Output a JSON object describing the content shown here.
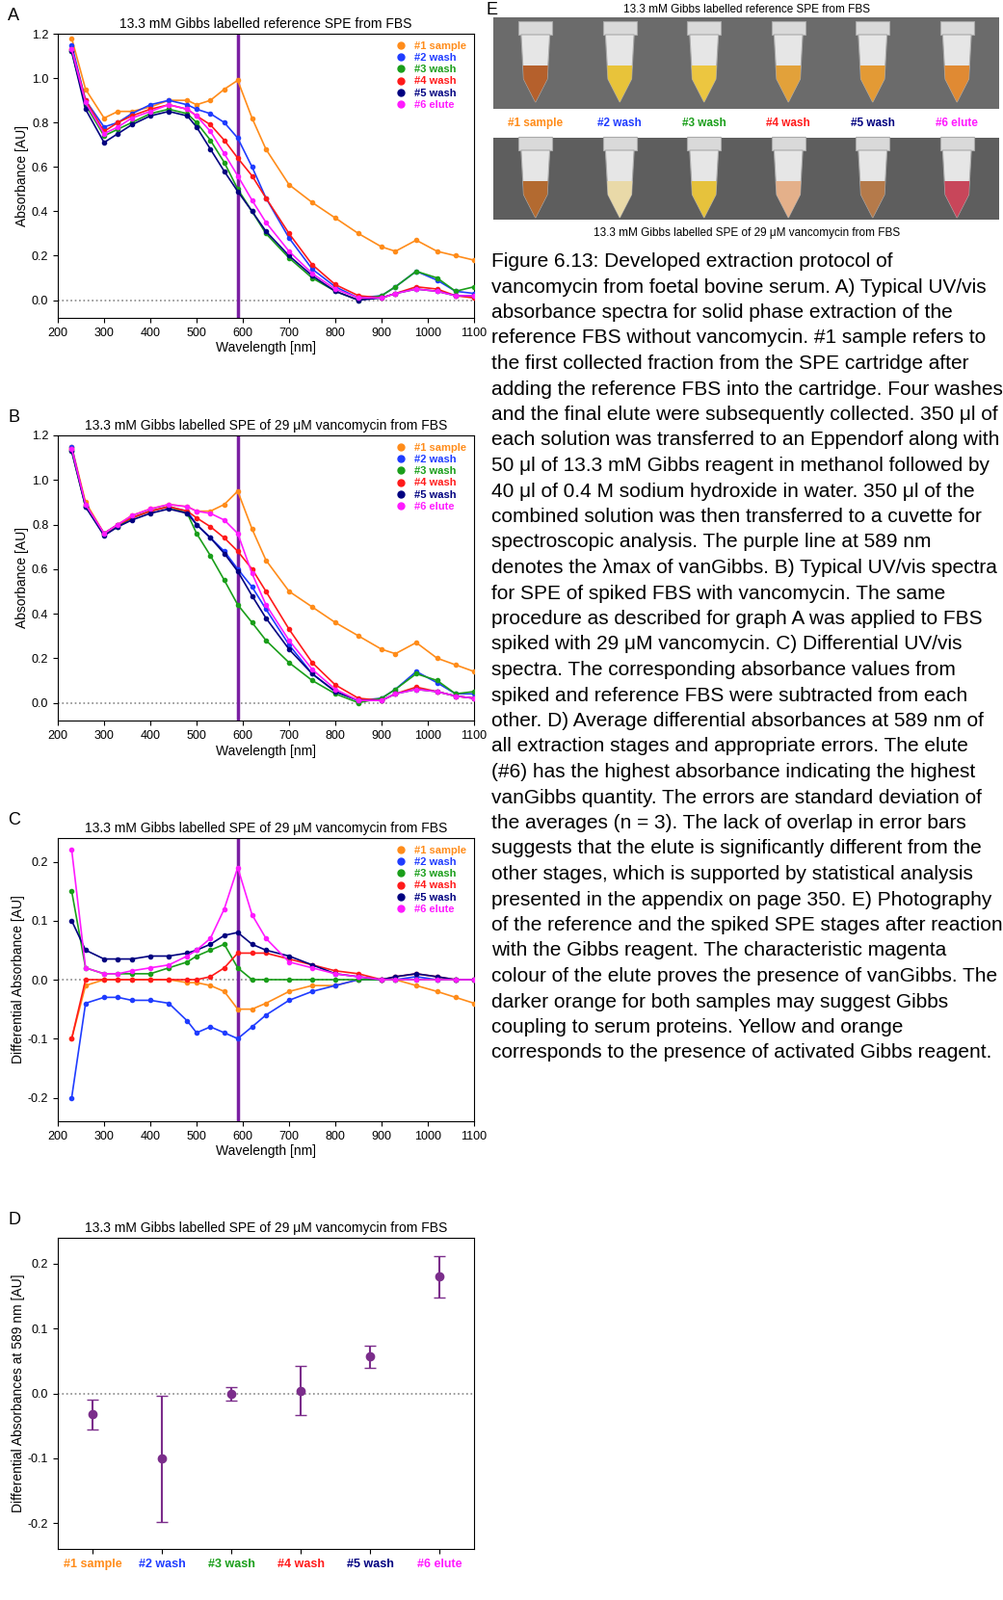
{
  "chart_data": [
    {
      "panel": "A",
      "type": "line",
      "marker": "o",
      "legend": "upper right",
      "title": "13.3 mM Gibbs labelled reference SPE from FBS",
      "xlabel": "Wavelength [nm]",
      "ylabel": "Absorbance [AU]",
      "xlim": [
        200,
        1100
      ],
      "xticks": [
        200,
        300,
        400,
        500,
        600,
        700,
        800,
        900,
        1000,
        1100
      ],
      "ylim": [
        -0.08,
        1.2
      ],
      "yticks": [
        {
          "value": 0,
          "label": "0.0"
        },
        0.2,
        0.4,
        0.6,
        0.8,
        {
          "value": 1,
          "label": "1.0"
        },
        1.2
      ],
      "vline": 589,
      "hline": 0,
      "x": [
        230,
        260,
        300,
        330,
        360,
        400,
        440,
        480,
        500,
        530,
        560,
        589,
        620,
        650,
        700,
        750,
        800,
        850,
        900,
        930,
        975,
        1020,
        1060,
        1100
      ],
      "series": [
        {
          "name": "#1 sample",
          "color": "#ff8c1a",
          "values": [
            1.18,
            0.95,
            0.82,
            0.85,
            0.85,
            0.87,
            0.9,
            0.9,
            0.88,
            0.9,
            0.95,
            0.99,
            0.82,
            0.68,
            0.52,
            0.44,
            0.37,
            0.3,
            0.24,
            0.22,
            0.27,
            0.22,
            0.2,
            0.18
          ]
        },
        {
          "name": "#2 wash",
          "color": "#1f3cff",
          "values": [
            1.15,
            0.9,
            0.78,
            0.8,
            0.84,
            0.88,
            0.9,
            0.88,
            0.86,
            0.84,
            0.8,
            0.73,
            0.6,
            0.46,
            0.28,
            0.14,
            0.06,
            0.01,
            0.02,
            0.06,
            0.13,
            0.09,
            0.04,
            0.03
          ]
        },
        {
          "name": "#3 wash",
          "color": "#1a9e1a",
          "values": [
            1.12,
            0.88,
            0.74,
            0.77,
            0.8,
            0.84,
            0.86,
            0.84,
            0.8,
            0.72,
            0.62,
            0.5,
            0.4,
            0.3,
            0.19,
            0.1,
            0.04,
            0,
            0.02,
            0.06,
            0.13,
            0.1,
            0.04,
            0.06
          ]
        },
        {
          "name": "#4 wash",
          "color": "#ff1a1a",
          "values": [
            1.13,
            0.9,
            0.76,
            0.8,
            0.83,
            0.86,
            0.88,
            0.86,
            0.83,
            0.79,
            0.72,
            0.64,
            0.56,
            0.46,
            0.3,
            0.16,
            0.07,
            0.02,
            0.01,
            0.03,
            0.06,
            0.05,
            0.02,
            0.01
          ]
        },
        {
          "name": "#5 wash",
          "color": "#000080",
          "values": [
            1.12,
            0.86,
            0.71,
            0.75,
            0.79,
            0.83,
            0.85,
            0.83,
            0.78,
            0.68,
            0.58,
            0.49,
            0.4,
            0.31,
            0.2,
            0.11,
            0.04,
            0,
            0.01,
            0.03,
            0.05,
            0.04,
            0.02,
            0.02
          ]
        },
        {
          "name": "#6 elute",
          "color": "#ff1aff",
          "values": [
            1.13,
            0.89,
            0.75,
            0.78,
            0.82,
            0.85,
            0.88,
            0.86,
            0.83,
            0.76,
            0.66,
            0.56,
            0.45,
            0.35,
            0.22,
            0.12,
            0.05,
            0.01,
            0.01,
            0.03,
            0.05,
            0.04,
            0.02,
            0.02
          ]
        }
      ]
    },
    {
      "panel": "B",
      "type": "line",
      "marker": "o",
      "legend": "upper right",
      "title": "13.3 mM Gibbs labelled SPE of 29 μM vancomycin from FBS",
      "xlabel": "Wavelength [nm]",
      "ylabel": "Absorbance [AU]",
      "xlim": [
        200,
        1100
      ],
      "xticks": [
        200,
        300,
        400,
        500,
        600,
        700,
        800,
        900,
        1000,
        1100
      ],
      "ylim": [
        -0.08,
        1.2
      ],
      "yticks": [
        {
          "value": 0,
          "label": "0.0"
        },
        0.2,
        0.4,
        0.6,
        0.8,
        {
          "value": 1,
          "label": "1.0"
        },
        1.2
      ],
      "vline": 589,
      "hline": 0,
      "x": [
        230,
        260,
        300,
        330,
        360,
        400,
        440,
        480,
        500,
        530,
        560,
        589,
        620,
        650,
        700,
        750,
        800,
        850,
        900,
        930,
        975,
        1020,
        1060,
        1100
      ],
      "series": [
        {
          "name": "#1 sample",
          "color": "#ff8c1a",
          "values": [
            1.15,
            0.9,
            0.76,
            0.8,
            0.84,
            0.87,
            0.89,
            0.88,
            0.86,
            0.86,
            0.89,
            0.95,
            0.78,
            0.64,
            0.5,
            0.43,
            0.36,
            0.3,
            0.24,
            0.22,
            0.27,
            0.2,
            0.17,
            0.14
          ]
        },
        {
          "name": "#2 wash",
          "color": "#1f3cff",
          "values": [
            1.15,
            0.88,
            0.76,
            0.8,
            0.83,
            0.86,
            0.88,
            0.86,
            0.8,
            0.74,
            0.68,
            0.6,
            0.52,
            0.42,
            0.26,
            0.13,
            0.05,
            0.01,
            0.02,
            0.06,
            0.14,
            0.09,
            0.04,
            0.04
          ]
        },
        {
          "name": "#3 wash",
          "color": "#1a9e1a",
          "values": [
            1.13,
            0.88,
            0.76,
            0.79,
            0.83,
            0.86,
            0.88,
            0.85,
            0.76,
            0.66,
            0.55,
            0.44,
            0.36,
            0.28,
            0.18,
            0.1,
            0.04,
            0,
            0.02,
            0.06,
            0.13,
            0.1,
            0.04,
            0.05
          ]
        },
        {
          "name": "#4 wash",
          "color": "#ff1a1a",
          "values": [
            1.14,
            0.89,
            0.76,
            0.8,
            0.83,
            0.86,
            0.88,
            0.86,
            0.83,
            0.79,
            0.74,
            0.68,
            0.6,
            0.5,
            0.33,
            0.18,
            0.08,
            0.02,
            0.01,
            0.04,
            0.07,
            0.05,
            0.03,
            0.02
          ]
        },
        {
          "name": "#5 wash",
          "color": "#000080",
          "values": [
            1.13,
            0.88,
            0.75,
            0.79,
            0.82,
            0.85,
            0.87,
            0.85,
            0.8,
            0.74,
            0.67,
            0.59,
            0.48,
            0.38,
            0.24,
            0.13,
            0.05,
            0.01,
            0.01,
            0.04,
            0.06,
            0.05,
            0.03,
            0.02
          ]
        },
        {
          "name": "#6 elute",
          "color": "#ff1aff",
          "values": [
            1.14,
            0.89,
            0.76,
            0.8,
            0.84,
            0.87,
            0.89,
            0.88,
            0.86,
            0.85,
            0.82,
            0.76,
            0.58,
            0.44,
            0.28,
            0.15,
            0.06,
            0.01,
            0.01,
            0.04,
            0.06,
            0.05,
            0.03,
            0.02
          ]
        }
      ]
    },
    {
      "panel": "C",
      "type": "line",
      "marker": "o",
      "legend": "upper right",
      "title": "13.3 mM Gibbs labelled SPE of 29 μM vancomycin from FBS",
      "xlabel": "Wavelength [nm]",
      "ylabel": "Differential Absorbance [AU]",
      "xlim": [
        200,
        1100
      ],
      "xticks": [
        200,
        300,
        400,
        500,
        600,
        700,
        800,
        900,
        1000,
        1100
      ],
      "ylim": [
        -0.24,
        0.24
      ],
      "yticks": [
        {
          "value": -0.2,
          "label": "-0.2"
        },
        {
          "value": -0.1,
          "label": "-0.1"
        },
        {
          "value": 0,
          "label": "0.0"
        },
        0.1,
        0.2
      ],
      "vline": 589,
      "hline": 0,
      "x": [
        230,
        260,
        300,
        330,
        360,
        400,
        440,
        480,
        500,
        530,
        560,
        589,
        620,
        650,
        700,
        750,
        800,
        850,
        900,
        930,
        975,
        1020,
        1060,
        1100
      ],
      "series": [
        {
          "name": "#1 sample",
          "color": "#ff8c1a",
          "values": [
            -0.1,
            -0.01,
            0,
            0,
            0,
            0,
            0,
            -0.005,
            -0.005,
            -0.01,
            -0.02,
            -0.05,
            -0.05,
            -0.04,
            -0.02,
            -0.01,
            -0.01,
            0,
            0,
            0,
            -0.01,
            -0.02,
            -0.03,
            -0.04
          ]
        },
        {
          "name": "#2 wash",
          "color": "#1f3cff",
          "values": [
            -0.2,
            -0.04,
            -0.03,
            -0.03,
            -0.035,
            -0.035,
            -0.04,
            -0.07,
            -0.09,
            -0.08,
            -0.09,
            -0.1,
            -0.08,
            -0.06,
            -0.035,
            -0.02,
            -0.01,
            0,
            0,
            0,
            0.005,
            0,
            0,
            0
          ]
        },
        {
          "name": "#3 wash",
          "color": "#1a9e1a",
          "values": [
            0.15,
            0.02,
            0.01,
            0.01,
            0.01,
            0.01,
            0.02,
            0.03,
            0.04,
            0.05,
            0.06,
            0.02,
            0,
            0,
            0,
            0,
            0,
            0,
            0,
            0,
            0,
            0,
            0,
            0
          ]
        },
        {
          "name": "#4 wash",
          "color": "#ff1a1a",
          "values": [
            -0.1,
            0,
            0,
            0,
            0,
            0,
            0,
            0,
            0,
            0.005,
            0.02,
            0.045,
            0.045,
            0.045,
            0.035,
            0.025,
            0.015,
            0.01,
            0,
            0.005,
            0.01,
            0.005,
            0,
            0
          ]
        },
        {
          "name": "#5 wash",
          "color": "#000080",
          "values": [
            0.1,
            0.05,
            0.035,
            0.035,
            0.035,
            0.04,
            0.04,
            0.045,
            0.05,
            0.06,
            0.075,
            0.08,
            0.06,
            0.05,
            0.04,
            0.025,
            0.01,
            0.005,
            0,
            0.005,
            0.01,
            0.005,
            0,
            0
          ]
        },
        {
          "name": "#6 elute",
          "color": "#ff1aff",
          "values": [
            0.22,
            0.02,
            0.01,
            0.01,
            0.015,
            0.02,
            0.025,
            0.04,
            0.05,
            0.07,
            0.12,
            0.19,
            0.11,
            0.07,
            0.03,
            0.02,
            0.01,
            0.005,
            0,
            0,
            0,
            0,
            0,
            0
          ]
        }
      ]
    },
    {
      "panel": "D",
      "type": "scatter",
      "marker": "o",
      "color": "#7b2d8b",
      "title": "13.3 mM Gibbs labelled SPE of 29 μM vancomycin from FBS",
      "ylabel": "Differential Absorbances at 589 nm [AU]",
      "ylim": [
        -0.24,
        0.24
      ],
      "yticks": [
        {
          "value": -0.2,
          "label": "-0.2"
        },
        {
          "value": -0.1,
          "label": "-0.1"
        },
        {
          "value": 0,
          "label": "0.0"
        },
        0.1,
        0.2
      ],
      "hline": 0,
      "categories": [
        "#1 sample",
        "#2 wash",
        "#3 wash",
        "#4 wash",
        "#5 wash",
        "#6 elute"
      ],
      "values": [
        -0.032,
        -0.101,
        -0.001,
        0.004,
        0.057,
        0.18
      ],
      "errors": [
        0.023,
        0.098,
        0.01,
        0.038,
        0.017,
        0.032
      ]
    }
  ],
  "photo": {
    "panel": "E",
    "title": "13.3 mM Gibbs labelled reference SPE from FBS",
    "labels": [
      "#1 sample",
      "#2 wash",
      "#3 wash",
      "#4 wash",
      "#5 wash",
      "#6 elute"
    ],
    "caption": "13.3 mM Gibbs labelled SPE of 29 μM vancomycin from FBS"
  },
  "caption": "Figure 6.13: Developed extraction protocol of vancomycin from foetal bovine serum. A) Typical UV/vis absorbance spectra for solid phase extraction of the reference FBS without vancomycin. #1 sample refers to the first collected fraction from the SPE cartridge after adding the reference FBS into the cartridge. Four washes and the final elute were subsequently collected. 350 μl of each solution was transferred to an Eppendorf along with 50 μl of 13.3 mM Gibbs reagent in methanol followed by 40 μl of 0.4 M sodium hydroxide in water. 350 μl of the combined solution was then transferred to a cuvette for spectroscopic analysis. The purple line at 589 nm denotes the λmax of vanGibbs. B) Typical UV/vis spectra for SPE of spiked FBS with vancomycin. The same procedure as described for graph A was applied to FBS spiked with 29 μM vancomycin. C) Differential UV/vis spectra. The corresponding absorbance values from spiked and reference FBS were subtracted from each other. D) Average differential absorbances at 589 nm of all extraction stages and appropriate errors. The elute (#6) has the highest absorbance indicating the highest vanGibbs quantity. The errors are standard deviation of the averages (n = 3). The lack of overlap in error bars suggests that the elute is significantly different from the other stages, which is supported by statistical analysis presented in the appendix on page 350. E) Photography of the reference and the spiked SPE stages after reaction with the Gibbs reagent. The characteristic magenta colour of the elute proves the presence of vanGibbs. The darker orange for both samples may suggest Gibbs coupling to serum proteins. Yellow and orange corresponds to the presence of activated Gibbs reagent."
}
